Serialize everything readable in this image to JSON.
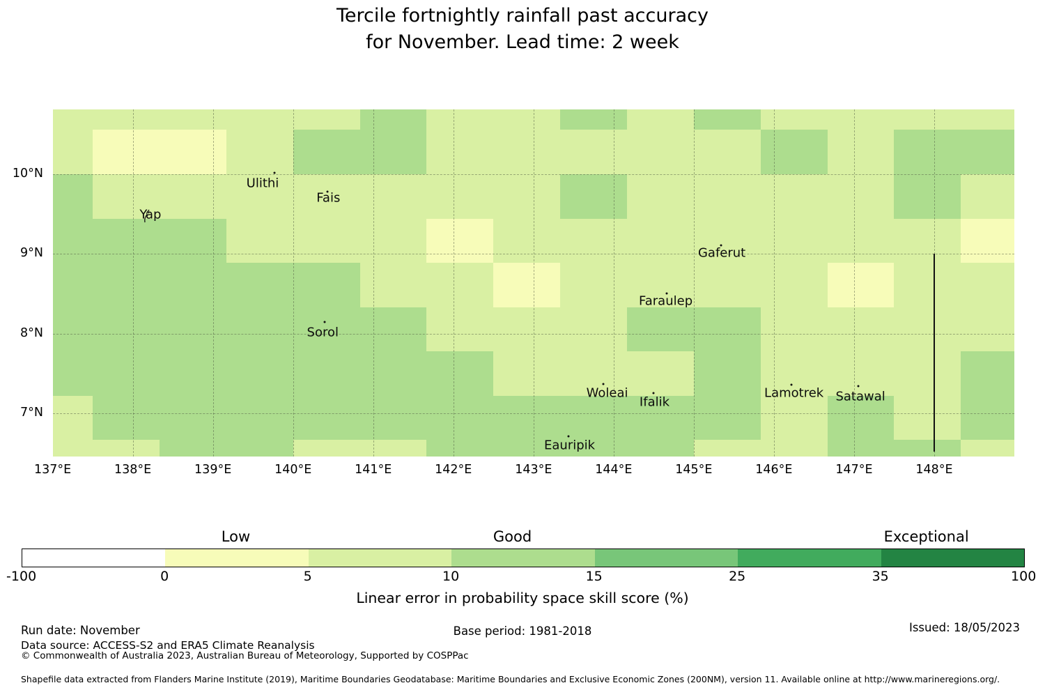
{
  "title": {
    "line1": "Tercile fortnightly rainfall past accuracy",
    "line2": "for November. Lead time: 2 week"
  },
  "chart_data": {
    "type": "heatmap",
    "xlim": [
      137,
      149
    ],
    "ylim": [
      6.459,
      10.813
    ],
    "x_tick_values": [
      137,
      138,
      139,
      140,
      141,
      142,
      143,
      144,
      145,
      146,
      147,
      148
    ],
    "x_tick_labels": [
      "137°E",
      "138°E",
      "139°E",
      "140°E",
      "141°E",
      "142°E",
      "143°E",
      "144°E",
      "145°E",
      "146°E",
      "147°E",
      "148°E"
    ],
    "y_tick_values": [
      10,
      9,
      8,
      7
    ],
    "y_tick_labels": [
      "10°N",
      "9°N",
      "8°N",
      "7°N"
    ],
    "grid": true,
    "lon_edges": [
      137.0,
      137.5,
      138.333,
      139.167,
      140.0,
      140.833,
      141.667,
      142.5,
      143.333,
      144.167,
      145.0,
      145.833,
      146.667,
      147.5,
      148.333,
      149.0
    ],
    "lat_edges": [
      10.813,
      10.556,
      10.0,
      9.444,
      8.889,
      8.333,
      7.778,
      7.222,
      6.667,
      6.459
    ],
    "bin_matrix": [
      [
        2,
        2,
        2,
        2,
        2,
        3,
        2,
        2,
        3,
        2,
        3,
        2,
        2,
        2,
        2
      ],
      [
        2,
        1,
        1,
        2,
        3,
        3,
        2,
        2,
        2,
        2,
        2,
        3,
        2,
        3,
        3
      ],
      [
        3,
        2,
        2,
        2,
        2,
        2,
        2,
        2,
        3,
        2,
        2,
        2,
        2,
        3,
        2
      ],
      [
        3,
        3,
        3,
        2,
        2,
        2,
        1,
        2,
        2,
        2,
        2,
        2,
        2,
        2,
        1
      ],
      [
        3,
        3,
        3,
        3,
        3,
        2,
        2,
        1,
        2,
        2,
        2,
        2,
        1,
        2,
        2
      ],
      [
        3,
        3,
        3,
        3,
        3,
        3,
        2,
        2,
        2,
        3,
        3,
        2,
        2,
        2,
        2
      ],
      [
        3,
        3,
        3,
        3,
        3,
        3,
        3,
        2,
        2,
        2,
        3,
        2,
        2,
        2,
        3
      ],
      [
        2,
        3,
        3,
        3,
        3,
        3,
        3,
        3,
        3,
        3,
        3,
        2,
        3,
        2,
        3
      ],
      [
        2,
        2,
        3,
        3,
        2,
        2,
        3,
        3,
        3,
        3,
        2,
        2,
        3,
        3,
        2
      ]
    ],
    "bin_value_ranges": {
      "1": "0 to 5",
      "2": "5 to 10",
      "3": "10 to 15"
    },
    "islands": [
      {
        "name": "Yap",
        "lon": 138.12,
        "lat": 9.57,
        "label_lon": 138.22,
        "label_lat": 9.49,
        "marker": "outline"
      },
      {
        "name": "Ulithi",
        "lon": 139.77,
        "lat": 10.02,
        "label_lon": 139.62,
        "label_lat": 9.886,
        "marker": "dot"
      },
      {
        "name": "Fais",
        "lon": 140.43,
        "lat": 9.78,
        "label_lon": 140.44,
        "label_lat": 9.703,
        "marker": "dot"
      },
      {
        "name": "Sorol",
        "lon": 140.39,
        "lat": 8.146,
        "label_lon": 140.37,
        "label_lat": 8.015,
        "marker": "dot"
      },
      {
        "name": "Gaferut",
        "lon": 145.34,
        "lat": 9.108,
        "label_lon": 145.35,
        "label_lat": 9.012,
        "marker": "dot"
      },
      {
        "name": "Faraulep",
        "lon": 144.66,
        "lat": 8.505,
        "label_lon": 144.65,
        "label_lat": 8.408,
        "marker": "dot"
      },
      {
        "name": "Woleai",
        "lon": 143.87,
        "lat": 7.368,
        "label_lon": 143.92,
        "label_lat": 7.254,
        "marker": "dot"
      },
      {
        "name": "Ifalik",
        "lon": 144.5,
        "lat": 7.254,
        "label_lon": 144.51,
        "label_lat": 7.14,
        "marker": "dot"
      },
      {
        "name": "Lamotrek",
        "lon": 146.22,
        "lat": 7.359,
        "label_lon": 146.25,
        "label_lat": 7.254,
        "marker": "dot"
      },
      {
        "name": "Satawal",
        "lon": 147.05,
        "lat": 7.341,
        "label_lon": 147.08,
        "label_lat": 7.21,
        "marker": "dot"
      },
      {
        "name": "Eauripik",
        "lon": 143.44,
        "lat": 6.712,
        "label_lon": 143.45,
        "label_lat": 6.598,
        "marker": "dot"
      }
    ],
    "eez_line": {
      "lon": 147.99,
      "lat_from": 9.005,
      "lat_to": 6.52
    },
    "colorbar": {
      "bounds": [
        -100,
        0,
        5,
        10,
        15,
        25,
        35,
        100
      ],
      "colors": [
        "#ffffff",
        "#f7fcb9",
        "#d9f0a3",
        "#addd8e",
        "#78c679",
        "#41ab5d",
        "#238443"
      ],
      "tick_labels": [
        "-100",
        "0",
        "5",
        "10",
        "15",
        "25",
        "35",
        "100"
      ],
      "category_labels": [
        {
          "text": "Low",
          "pos": 0.214
        },
        {
          "text": "Good",
          "pos": 0.49
        },
        {
          "text": "Exceptional",
          "pos": 0.903
        }
      ],
      "label": "Linear error in probability space skill score (%)"
    }
  },
  "footer": {
    "run_date": "Run date: November",
    "data_source": "Data source: ACCESS-S2 and ERA5 Climate Reanalysis",
    "copyright": "© Commonwealth of Australia 2023, Australian Bureau of Meteorology, Supported by COSPPac",
    "base_period": "Base period: 1981-2018",
    "issued": "Issued: 18/05/2023",
    "shapefile_note": "Shapefile data extracted from Flanders Marine Institute (2019), Maritime Boundaries Geodatabase: Maritime Boundaries and Exclusive Economic Zones (200NM), version 11. Available online at http://www.marineregions.org/."
  }
}
